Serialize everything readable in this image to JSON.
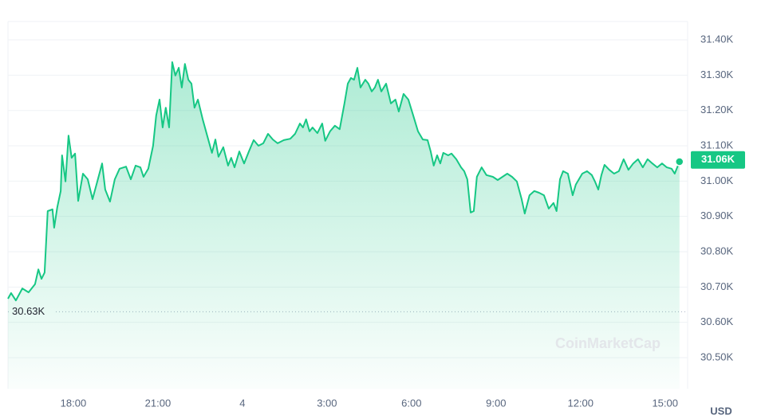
{
  "chart_data": {
    "type": "line",
    "y_unit": "USD",
    "watermark": "CoinMarketCap",
    "color": "#16c784",
    "grid": true,
    "xlim": [
      15.68,
      39.8
    ],
    "ylim": [
      30412,
      31452
    ],
    "xticks": [
      {
        "value": 18,
        "label": "18:00"
      },
      {
        "value": 21,
        "label": "21:00"
      },
      {
        "value": 24,
        "label": "4"
      },
      {
        "value": 27,
        "label": "3:00"
      },
      {
        "value": 30,
        "label": "6:00"
      },
      {
        "value": 33,
        "label": "9:00"
      },
      {
        "value": 36,
        "label": "12:00"
      },
      {
        "value": 39,
        "label": "15:00"
      }
    ],
    "yticks": [
      {
        "value": 30500,
        "label": "30.50K"
      },
      {
        "value": 30600,
        "label": "30.60K"
      },
      {
        "value": 30700,
        "label": "30.70K"
      },
      {
        "value": 30800,
        "label": "30.80K"
      },
      {
        "value": 30900,
        "label": "30.90K"
      },
      {
        "value": 31000,
        "label": "31.00K"
      },
      {
        "value": 31100,
        "label": "31.10K"
      },
      {
        "value": 31200,
        "label": "31.20K"
      },
      {
        "value": 31300,
        "label": "31.30K"
      },
      {
        "value": 31400,
        "label": "31.40K"
      }
    ],
    "reference_line": {
      "value": 30630,
      "label": "30.63K"
    },
    "current_price": {
      "value": 31060,
      "label": "31.06K"
    },
    "x": [
      15.68,
      15.79,
      15.96,
      16.19,
      16.41,
      16.64,
      16.76,
      16.87,
      16.98,
      17.09,
      17.26,
      17.32,
      17.43,
      17.55,
      17.6,
      17.72,
      17.83,
      17.94,
      18.06,
      18.17,
      18.34,
      18.51,
      18.68,
      18.85,
      19.02,
      19.13,
      19.3,
      19.47,
      19.64,
      19.87,
      20.04,
      20.21,
      20.38,
      20.49,
      20.66,
      20.83,
      20.94,
      21.06,
      21.17,
      21.28,
      21.4,
      21.51,
      21.62,
      21.74,
      21.85,
      21.96,
      22.08,
      22.19,
      22.3,
      22.42,
      22.59,
      22.75,
      22.92,
      23.04,
      23.15,
      23.32,
      23.49,
      23.6,
      23.72,
      23.89,
      24.06,
      24.23,
      24.4,
      24.57,
      24.74,
      24.91,
      25.08,
      25.25,
      25.47,
      25.7,
      25.87,
      26.04,
      26.15,
      26.26,
      26.38,
      26.49,
      26.66,
      26.83,
      26.94,
      27.11,
      27.28,
      27.45,
      27.62,
      27.74,
      27.85,
      27.96,
      28.08,
      28.19,
      28.36,
      28.47,
      28.59,
      28.7,
      28.81,
      28.93,
      29.1,
      29.27,
      29.43,
      29.55,
      29.72,
      29.89,
      30.06,
      30.23,
      30.4,
      30.57,
      30.68,
      30.79,
      30.91,
      31.02,
      31.13,
      31.3,
      31.42,
      31.59,
      31.76,
      31.87,
      31.98,
      32.1,
      32.21,
      32.32,
      32.49,
      32.66,
      32.89,
      33.06,
      33.23,
      33.4,
      33.57,
      33.74,
      33.91,
      34.02,
      34.19,
      34.36,
      34.53,
      34.7,
      34.87,
      35.04,
      35.15,
      35.27,
      35.38,
      35.55,
      35.72,
      35.83,
      36.06,
      36.23,
      36.4,
      36.51,
      36.63,
      36.74,
      36.85,
      37.02,
      37.19,
      37.36,
      37.53,
      37.7,
      37.87,
      38.04,
      38.21,
      38.38,
      38.55,
      38.72,
      38.89,
      39.06,
      39.23,
      39.34,
      39.51
    ],
    "values": [
      30667,
      30683,
      30662,
      30696,
      30685,
      30708,
      30750,
      30723,
      30741,
      30915,
      30920,
      30868,
      30926,
      30972,
      31073,
      30999,
      31129,
      31066,
      31078,
      30944,
      31021,
      31005,
      30949,
      30999,
      31050,
      30976,
      30942,
      31005,
      31035,
      31041,
      31005,
      31044,
      31039,
      31012,
      31035,
      31100,
      31186,
      31231,
      31152,
      31208,
      31152,
      31337,
      31299,
      31321,
      31265,
      31332,
      31287,
      31276,
      31208,
      31231,
      31175,
      31129,
      31080,
      31118,
      31069,
      31096,
      31044,
      31066,
      31039,
      31084,
      31050,
      31084,
      31116,
      31100,
      31107,
      31134,
      31118,
      31107,
      31116,
      31120,
      31134,
      31163,
      31152,
      31175,
      31141,
      31152,
      31136,
      31163,
      31114,
      31141,
      31157,
      31147,
      31220,
      31276,
      31292,
      31287,
      31321,
      31265,
      31287,
      31276,
      31254,
      31265,
      31287,
      31254,
      31276,
      31220,
      31231,
      31197,
      31247,
      31231,
      31186,
      31141,
      31118,
      31116,
      31084,
      31044,
      31073,
      31050,
      31080,
      31073,
      31078,
      31062,
      31039,
      31028,
      31005,
      30911,
      30915,
      31012,
      31039,
      31017,
      31012,
      31003,
      31012,
      31021,
      31012,
      30999,
      30949,
      30908,
      30960,
      30972,
      30967,
      30960,
      30922,
      30938,
      30915,
      31005,
      31028,
      31021,
      30960,
      30990,
      31021,
      31028,
      31017,
      30999,
      30976,
      31017,
      31046,
      31032,
      31021,
      31028,
      31062,
      31032,
      31050,
      31062,
      31039,
      31062,
      31050,
      31039,
      31050,
      31039,
      31035,
      31021,
      31055
    ]
  }
}
